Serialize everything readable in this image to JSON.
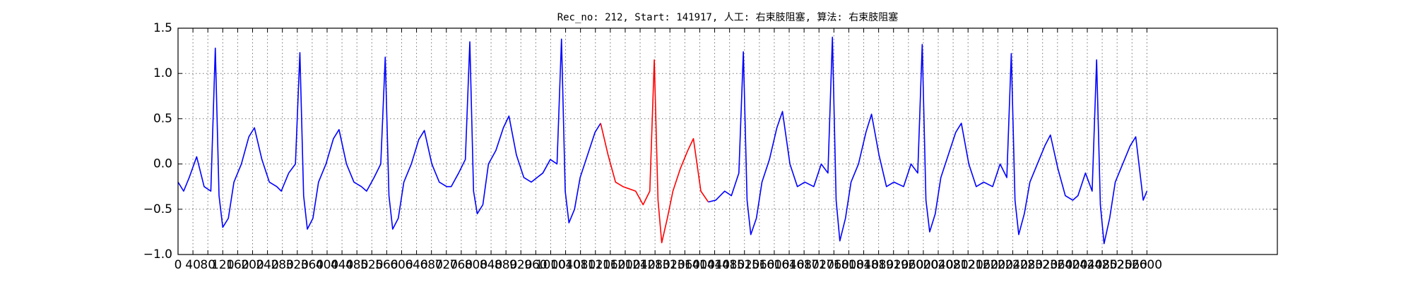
{
  "chart_data": {
    "type": "line",
    "title": "Rec_no: 212, Start: 141917, 人工: 右束肢阻塞, 算法: 右束肢阻塞",
    "x": [
      0,
      15,
      30,
      50,
      70,
      88,
      100,
      110,
      120,
      135,
      150,
      170,
      190,
      205,
      225,
      245,
      265,
      277,
      297,
      315,
      327,
      337,
      347,
      362,
      377,
      397,
      417,
      432,
      452,
      472,
      492,
      506,
      526,
      544,
      556,
      566,
      576,
      591,
      606,
      626,
      646,
      661,
      681,
      701,
      721,
      733,
      753,
      771,
      783,
      793,
      803,
      818,
      833,
      853,
      873,
      888,
      908,
      928,
      948,
      979,
      999,
      1017,
      1029,
      1039,
      1049,
      1064,
      1079,
      1099,
      1119,
      1134,
      1154,
      1174,
      1194,
      1228,
      1248,
      1266,
      1278,
      1288,
      1298,
      1313,
      1328,
      1348,
      1368,
      1383,
      1403,
      1423,
      1443,
      1467,
      1485,
      1505,
      1517,
      1527,
      1537,
      1552,
      1567,
      1587,
      1607,
      1622,
      1642,
      1662,
      1682,
      1706,
      1726,
      1744,
      1756,
      1766,
      1776,
      1791,
      1806,
      1826,
      1846,
      1861,
      1881,
      1901,
      1921,
      1947,
      1967,
      1985,
      1997,
      2007,
      2017,
      2032,
      2047,
      2067,
      2087,
      2102,
      2122,
      2142,
      2162,
      2186,
      2206,
      2224,
      2236,
      2246,
      2256,
      2271,
      2286,
      2306,
      2326,
      2341,
      2361,
      2381,
      2401,
      2415,
      2435,
      2453,
      2465,
      2475,
      2485,
      2500,
      2515,
      2535,
      2555,
      2570,
      2590,
      2600
    ],
    "series": [
      {
        "color": "#0000ff",
        "values": [
          -0.2,
          -0.3,
          -0.15,
          0.08,
          -0.25,
          -0.3,
          1.28,
          -0.35,
          -0.7,
          -0.6,
          -0.2,
          0.0,
          0.3,
          0.4,
          0.05,
          -0.2,
          -0.25,
          -0.3,
          -0.1,
          0.0,
          1.23,
          -0.35,
          -0.72,
          -0.6,
          -0.2,
          0.0,
          0.28,
          0.38,
          0.0,
          -0.2,
          -0.25,
          -0.3,
          -0.15,
          0.0,
          1.18,
          -0.35,
          -0.72,
          -0.6,
          -0.2,
          0.0,
          0.27,
          0.37,
          0.0,
          -0.2,
          -0.25,
          -0.25,
          -0.1,
          0.05,
          1.35,
          -0.3,
          -0.55,
          -0.45,
          0.0,
          0.15,
          0.4,
          0.53,
          0.1,
          -0.15,
          -0.2,
          -0.1,
          0.05,
          0.0,
          1.38,
          -0.3,
          -0.65,
          -0.5,
          -0.15,
          0.1,
          0.35,
          0.45,
          null,
          null,
          null,
          null,
          null,
          null,
          null,
          null,
          null,
          null,
          null,
          null,
          null,
          null,
          null,
          -0.42,
          -0.4,
          -0.3,
          -0.35,
          -0.1,
          1.24,
          -0.4,
          -0.78,
          -0.6,
          -0.2,
          0.05,
          0.4,
          0.58,
          0.0,
          -0.25,
          -0.2,
          -0.25,
          0.0,
          -0.1,
          1.4,
          -0.4,
          -0.85,
          -0.6,
          -0.2,
          0.0,
          0.35,
          0.55,
          0.1,
          -0.25,
          -0.2,
          -0.25,
          0.0,
          -0.1,
          1.32,
          -0.4,
          -0.75,
          -0.55,
          -0.15,
          0.1,
          0.35,
          0.45,
          0.0,
          -0.25,
          -0.2,
          -0.25,
          0.0,
          -0.15,
          1.22,
          -0.4,
          -0.78,
          -0.55,
          -0.2,
          0.0,
          0.2,
          0.32,
          -0.05,
          -0.35,
          -0.4,
          -0.35,
          -0.1,
          -0.3,
          1.15,
          -0.45,
          -0.88,
          -0.6,
          -0.2,
          0.0,
          0.2,
          0.3,
          -0.4,
          -0.3
        ]
      },
      {
        "color": "#ff0000",
        "values": [
          null,
          null,
          null,
          null,
          null,
          null,
          null,
          null,
          null,
          null,
          null,
          null,
          null,
          null,
          null,
          null,
          null,
          null,
          null,
          null,
          null,
          null,
          null,
          null,
          null,
          null,
          null,
          null,
          null,
          null,
          null,
          null,
          null,
          null,
          null,
          null,
          null,
          null,
          null,
          null,
          null,
          null,
          null,
          null,
          null,
          null,
          null,
          null,
          null,
          null,
          null,
          null,
          null,
          null,
          null,
          null,
          null,
          null,
          null,
          null,
          null,
          null,
          null,
          null,
          null,
          null,
          null,
          null,
          null,
          0.45,
          0.1,
          -0.2,
          -0.25,
          -0.3,
          -0.45,
          -0.3,
          1.15,
          -0.4,
          -0.87,
          -0.6,
          -0.3,
          -0.05,
          0.15,
          0.28,
          -0.3,
          -0.42,
          null,
          null,
          null,
          null,
          null,
          null,
          null,
          null,
          null,
          null,
          null,
          null,
          null,
          null,
          null,
          null,
          null,
          null,
          null,
          null,
          null,
          null,
          null,
          null,
          null,
          null,
          null,
          null,
          null,
          null,
          null,
          null,
          null,
          null,
          null,
          null,
          null,
          null,
          null,
          null,
          null,
          null,
          null,
          null,
          null,
          null,
          null,
          null,
          null,
          null,
          null,
          null,
          null,
          null,
          null,
          null,
          null,
          null,
          null,
          null,
          null,
          null,
          null,
          null,
          null,
          null,
          null,
          null,
          null,
          null
        ]
      }
    ],
    "xlim": [
      0,
      2950
    ],
    "xticks": [
      0,
      40,
      80,
      120,
      160,
      200,
      240,
      280,
      320,
      360,
      400,
      440,
      480,
      520,
      560,
      600,
      640,
      680,
      720,
      760,
      800,
      840,
      880,
      920,
      960,
      1000,
      1040,
      1080,
      1120,
      1160,
      1200,
      1240,
      1280,
      1320,
      1360,
      1400,
      1440,
      1480,
      1520,
      1560,
      1600,
      1640,
      1680,
      1720,
      1760,
      1800,
      1840,
      1880,
      1920,
      1960,
      2000,
      2040,
      2080,
      2120,
      2160,
      2200,
      2240,
      2280,
      2320,
      2360,
      2400,
      2440,
      2480,
      2520,
      2560,
      2600
    ],
    "ylim": [
      -1,
      1.5
    ],
    "yticks": [
      {
        "value": -1,
        "label": "−1.0"
      },
      {
        "value": -0.5,
        "label": "−0.5"
      },
      {
        "value": 0,
        "label": "0.0"
      },
      {
        "value": 0.5,
        "label": "0.5"
      },
      {
        "value": 1,
        "label": "1.0"
      },
      {
        "value": 1.5,
        "label": "1.5"
      }
    ],
    "grid": true
  }
}
